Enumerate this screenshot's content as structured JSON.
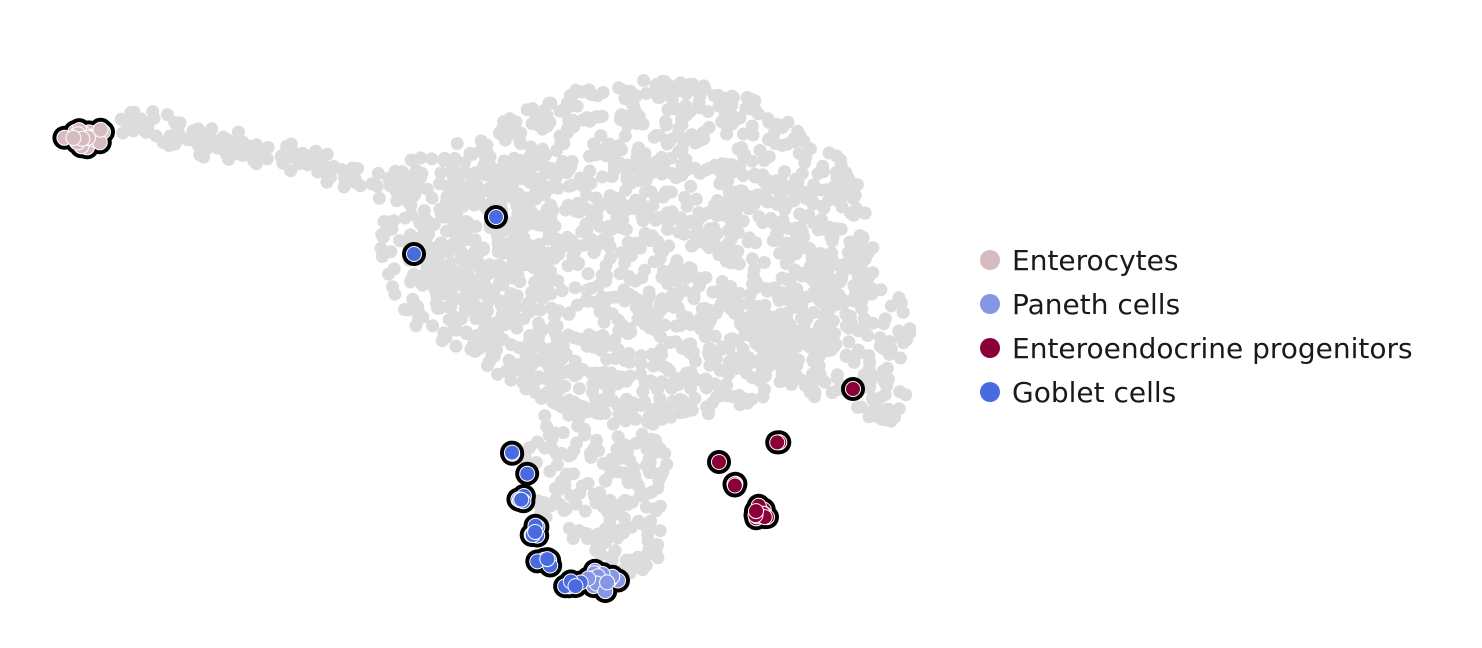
{
  "chart_data": {
    "type": "scatter",
    "title": "",
    "xlabel": "",
    "ylabel": "",
    "grid": false,
    "legend_position": "right",
    "background_color": "#dcdcdc",
    "highlight_outline": "#000000",
    "groups": [
      {
        "name": "Enterocytes",
        "color": "#d6bcc0"
      },
      {
        "name": "Paneth cells",
        "color": "#8796e4"
      },
      {
        "name": "Enteroendocrine progenitors",
        "color": "#8b0039"
      },
      {
        "name": "Goblet cells",
        "color": "#4a6be0"
      }
    ]
  }
}
